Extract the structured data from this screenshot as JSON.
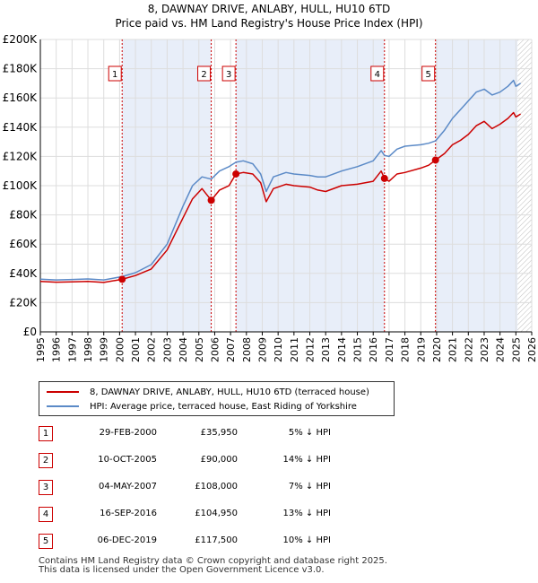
{
  "title": {
    "line1": "8, DAWNAY DRIVE, ANLABY, HULL, HU10 6TD",
    "line2": "Price paid vs. HM Land Registry's House Price Index (HPI)"
  },
  "chart_data": {
    "type": "line",
    "title": "Price paid vs. HM Land Registry's House Price Index (HPI)",
    "xlabel": "",
    "ylabel": "",
    "xlim": [
      1995,
      2026
    ],
    "ylim": [
      0,
      200000
    ],
    "y_ticks": [
      0,
      20000,
      40000,
      60000,
      80000,
      100000,
      120000,
      140000,
      160000,
      180000,
      200000
    ],
    "y_tick_labels": [
      "£0",
      "£20K",
      "£40K",
      "£60K",
      "£80K",
      "£100K",
      "£120K",
      "£140K",
      "£160K",
      "£180K",
      "£200K"
    ],
    "x_ticks": [
      1995,
      1996,
      1997,
      1998,
      1999,
      2000,
      2001,
      2002,
      2003,
      2004,
      2005,
      2006,
      2007,
      2008,
      2009,
      2010,
      2011,
      2012,
      2013,
      2014,
      2015,
      2016,
      2017,
      2018,
      2019,
      2020,
      2021,
      2022,
      2023,
      2024,
      2025,
      2026
    ],
    "x_tick_labels": [
      "1995",
      "1996",
      "1997",
      "1998",
      "1999",
      "2000",
      "2001",
      "2002",
      "2003",
      "2004",
      "2005",
      "2006",
      "2007",
      "2008",
      "2009",
      "2010",
      "2011",
      "2012",
      "2013",
      "2014",
      "2015",
      "2016",
      "2017",
      "2018",
      "2019",
      "2020",
      "2021",
      "2022",
      "2023",
      "2024",
      "2025",
      "2026"
    ],
    "grid": true,
    "legend_position": "below",
    "series": [
      {
        "name": "8, DAWNAY DRIVE, ANLABY, HULL, HU10 6TD (terraced house)",
        "color": "#cc0000",
        "x": [
          1995.0,
          1996.0,
          1997.0,
          1998.0,
          1999.0,
          2000.16,
          2001.0,
          2002.0,
          2003.0,
          2004.0,
          2004.6,
          2005.2,
          2005.78,
          2006.3,
          2006.9,
          2007.34,
          2007.8,
          2008.4,
          2008.9,
          2009.25,
          2009.7,
          2010.5,
          2011.0,
          2012.0,
          2012.5,
          2013.0,
          2014.0,
          2015.0,
          2016.0,
          2016.5,
          2016.71,
          2017.0,
          2017.5,
          2018.0,
          2019.0,
          2019.5,
          2019.93,
          2020.5,
          2021.0,
          2021.5,
          2022.0,
          2022.5,
          2023.0,
          2023.5,
          2024.0,
          2024.5,
          2024.85,
          2025.0,
          2025.3
        ],
        "values": [
          34500,
          34000,
          34200,
          34500,
          33800,
          35950,
          38500,
          43000,
          56000,
          78000,
          91000,
          98000,
          90000,
          97000,
          100000,
          108000,
          109000,
          108000,
          102000,
          89000,
          98000,
          101000,
          100000,
          99000,
          97000,
          96000,
          100000,
          101000,
          103000,
          110000,
          104950,
          103000,
          108000,
          109000,
          112000,
          114000,
          117500,
          122000,
          128000,
          131000,
          135000,
          141000,
          144000,
          139000,
          142000,
          146000,
          150000,
          147000,
          149000
        ]
      },
      {
        "name": "HPI: Average price, terraced house, East Riding of Yorkshire",
        "color": "#5b8ac7",
        "x": [
          1995.0,
          1996.0,
          1997.0,
          1998.0,
          1999.0,
          2000.16,
          2001.0,
          2002.0,
          2003.0,
          2004.0,
          2004.6,
          2005.2,
          2005.78,
          2006.3,
          2006.9,
          2007.34,
          2007.8,
          2008.4,
          2008.9,
          2009.25,
          2009.7,
          2010.5,
          2011.0,
          2012.0,
          2012.5,
          2013.0,
          2014.0,
          2015.0,
          2016.0,
          2016.5,
          2016.71,
          2017.0,
          2017.5,
          2018.0,
          2019.0,
          2019.5,
          2019.93,
          2020.5,
          2021.0,
          2021.5,
          2022.0,
          2022.5,
          2023.0,
          2023.5,
          2024.0,
          2024.5,
          2024.85,
          2025.0,
          2025.3
        ],
        "values": [
          36000,
          35500,
          35800,
          36200,
          35500,
          37800,
          40500,
          46000,
          60000,
          86000,
          100000,
          106000,
          104500,
          110000,
          113000,
          116000,
          117000,
          115000,
          108000,
          96000,
          106000,
          109000,
          108000,
          107000,
          106000,
          106000,
          110000,
          113000,
          117000,
          124000,
          120700,
          120000,
          125000,
          127000,
          128000,
          129000,
          130600,
          138000,
          146000,
          152000,
          158000,
          164000,
          166000,
          162000,
          164000,
          168000,
          172000,
          168000,
          170000
        ]
      }
    ],
    "transactions": [
      {
        "num": "1",
        "x": 2000.16,
        "value": 35950
      },
      {
        "num": "2",
        "x": 2005.78,
        "value": 90000
      },
      {
        "num": "3",
        "x": 2007.34,
        "value": 108000
      },
      {
        "num": "4",
        "x": 2016.71,
        "value": 104950
      },
      {
        "num": "5",
        "x": 2019.93,
        "value": 117500
      }
    ],
    "shaded_ranges": [
      [
        2000.16,
        2005.78
      ],
      [
        2007.34,
        2016.71
      ],
      [
        2019.93,
        2025.1
      ]
    ],
    "hatch_from": 2025.1
  },
  "legend": {
    "property_label": "8, DAWNAY DRIVE, ANLABY, HULL, HU10 6TD (terraced house)",
    "hpi_label": "HPI: Average price, terraced house, East Riding of Yorkshire"
  },
  "table": [
    {
      "num": "1",
      "date": "29-FEB-2000",
      "price": "£35,950",
      "hpi": "5% ↓ HPI"
    },
    {
      "num": "2",
      "date": "10-OCT-2005",
      "price": "£90,000",
      "hpi": "14% ↓ HPI"
    },
    {
      "num": "3",
      "date": "04-MAY-2007",
      "price": "£108,000",
      "hpi": "7% ↓ HPI"
    },
    {
      "num": "4",
      "date": "16-SEP-2016",
      "price": "£104,950",
      "hpi": "13% ↓ HPI"
    },
    {
      "num": "5",
      "date": "06-DEC-2019",
      "price": "£117,500",
      "hpi": "10% ↓ HPI"
    }
  ],
  "footer": {
    "line1": "Contains HM Land Registry data © Crown copyright and database right 2025.",
    "line2": "This data is licensed under the Open Government Licence v3.0."
  },
  "colors": {
    "property": "#cc0000",
    "hpi": "#5b8ac7",
    "shade": "#e8eef9",
    "grid": "#dddddd"
  }
}
